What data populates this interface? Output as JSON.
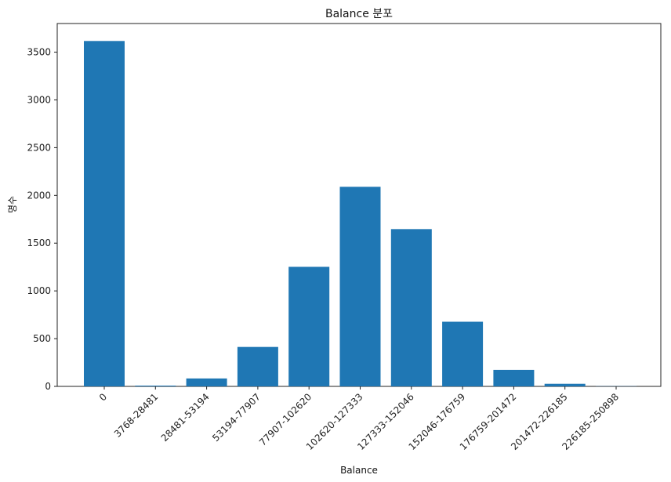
{
  "chart_data": {
    "type": "bar",
    "title": "Balance 분포",
    "xlabel": "Balance",
    "ylabel": "명수",
    "categories": [
      "0",
      "3768-28481",
      "28481-53194",
      "53194-77907",
      "77907-102620",
      "102620-127333",
      "127333-152046",
      "152046-176759",
      "176759-201472",
      "201472-226185",
      "226185-250898"
    ],
    "values": [
      3617,
      8,
      83,
      413,
      1252,
      2090,
      1647,
      677,
      173,
      27,
      2
    ],
    "ylim": [
      0,
      3800
    ],
    "yticks": [
      0,
      500,
      1000,
      1500,
      2000,
      2500,
      3000,
      3500
    ],
    "bar_color": "#1f77b4",
    "grid": false,
    "legend": "none"
  }
}
